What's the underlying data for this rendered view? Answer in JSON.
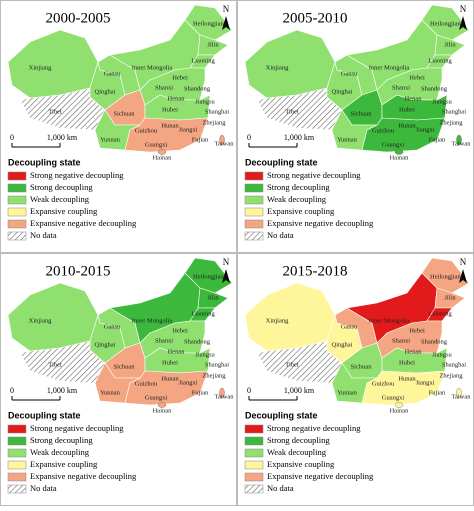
{
  "legend": {
    "title": "Decoupling state",
    "items": [
      {
        "label": "Strong negative decoupling",
        "color": "#e31a1c"
      },
      {
        "label": "Strong decoupling",
        "color": "#3cb93c"
      },
      {
        "label": "Weak decoupling",
        "color": "#90e070"
      },
      {
        "label": "Expansive coupling",
        "color": "#fff59a"
      },
      {
        "label": "Expansive negative decoupling",
        "color": "#f4a582"
      },
      {
        "label": "No data",
        "color": "hatch"
      }
    ]
  },
  "north": "N",
  "scale": {
    "start": "0",
    "end": "1,000 km"
  },
  "provinces": [
    "Xinjiang",
    "Tibet",
    "Qinghai",
    "Gansu",
    "Inner Mongolia",
    "Heilongjiang",
    "Jilin",
    "Liaoning",
    "Hebei",
    "Shanxi",
    "Shandong",
    "Henan",
    "Sichuan",
    "Hubei",
    "Jiangsu",
    "Shanghai",
    "Hunan",
    "Jiangxi",
    "Zhejiang",
    "Guizhou",
    "Fujian",
    "Yunnan",
    "Guangxi",
    "Taiwan",
    "Hainan"
  ],
  "panels": [
    {
      "title": "2000-2005",
      "region_colors": [
        "#90e070",
        "hatch",
        "#90e070",
        "#90e070",
        "#90e070",
        "#90e070",
        "#90e070",
        "#90e070",
        "#f4a582",
        "#90e070",
        "#90e070",
        "#90e070",
        "#f4a582"
      ]
    },
    {
      "title": "2005-2010",
      "region_colors": [
        "#90e070",
        "hatch",
        "#90e070",
        "#90e070",
        "#90e070",
        "#90e070",
        "#90e070",
        "#90e070",
        "#3cb93c",
        "#90e070",
        "#90e070",
        "#3cb93c",
        "#3cb93c"
      ]
    },
    {
      "title": "2010-2015",
      "region_colors": [
        "#90e070",
        "hatch",
        "#90e070",
        "#90e070",
        "#3cb93c",
        "#3cb93c",
        "#3cb93c",
        "#3cb93c",
        "#f4a582",
        "#f4a582",
        "#90e070",
        "#90e070",
        "#f4a582"
      ]
    },
    {
      "title": "2015-2018",
      "region_colors": [
        "#fff59a",
        "hatch",
        "#fff59a",
        "#f4a582",
        "#e31a1c",
        "#f4a582",
        "#f4a582",
        "#e31a1c",
        "#90e070",
        "#90e070",
        "#f4a582",
        "#90e070",
        "#fff59a"
      ]
    }
  ]
}
